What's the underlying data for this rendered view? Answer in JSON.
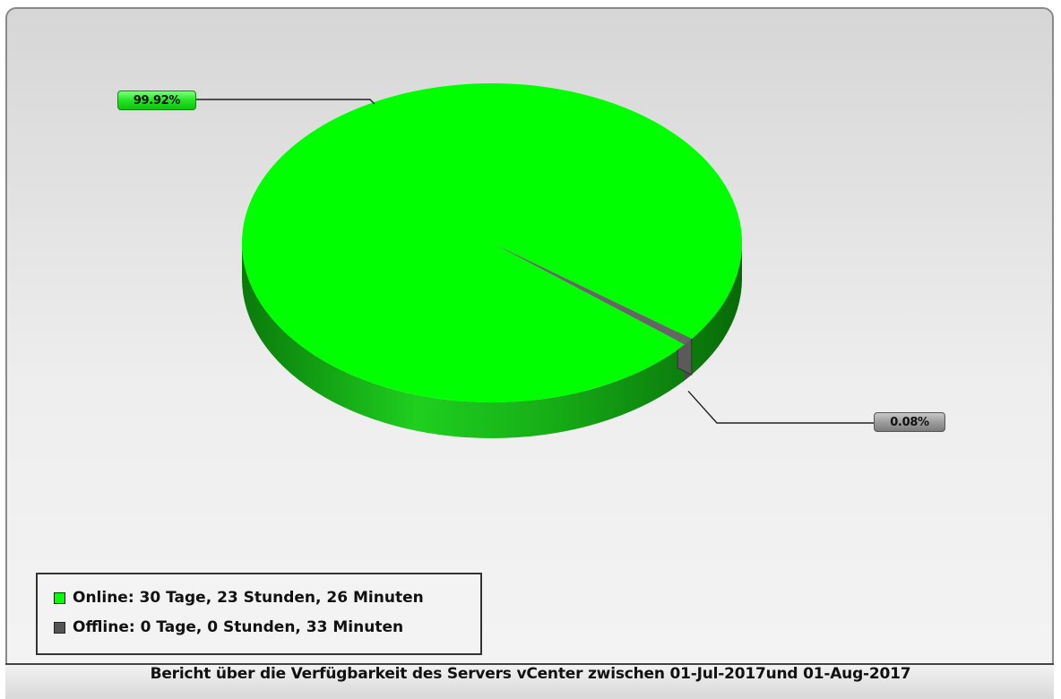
{
  "chart_data": {
    "type": "pie",
    "style": "3d",
    "categories": [
      "Online",
      "Offline"
    ],
    "values": [
      99.92,
      0.08
    ],
    "value_unit": "%",
    "data_labels": [
      "99.92%",
      "0.08%"
    ],
    "colors": [
      "#00ff00",
      "#555555"
    ],
    "legend_placement": "bottom-left",
    "legend": [
      "Online: 30 Tage, 23 Stunden, 26 Minuten",
      "Offline: 0 Tage, 0 Stunden, 33 Minuten"
    ],
    "title": "Bericht über die Verfügbarkeit des Servers vCenter zwischen 01-Jul-2017und 01-Aug-2017"
  }
}
